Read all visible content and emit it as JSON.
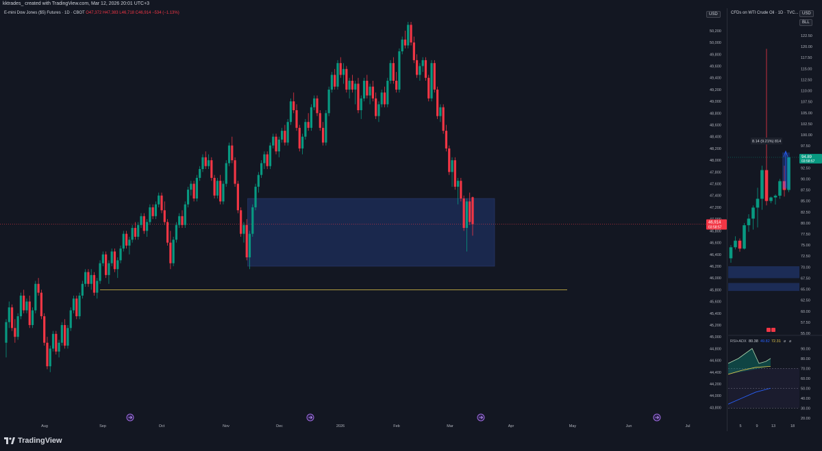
{
  "topbar": {
    "text": "kktrades_ created with TradingView.com, Mar 12, 2026 20:01 UTC+3"
  },
  "main": {
    "symbol": "E-mini Dow Jones ($5) Futures · 1D · CBOT",
    "ohlc": "O47,372 H47,383 L46,718 C46,914 −534 (−1.13%)",
    "currency": "USD",
    "price_label": "46,914",
    "countdown": "03:58:57",
    "y_ticks": [
      "50,200",
      "50,000",
      "49,800",
      "49,600",
      "49,400",
      "49,200",
      "49,000",
      "48,800",
      "48,600",
      "48,400",
      "48,200",
      "48,000",
      "47,800",
      "47,600",
      "47,400",
      "47,200",
      "47,000",
      "46,800",
      "46,600",
      "46,400",
      "46,200",
      "46,000",
      "45,800",
      "45,600",
      "45,400",
      "45,200",
      "45,000",
      "44,800",
      "44,600",
      "44,400",
      "44,200",
      "44,000",
      "43,800"
    ],
    "x_ticks": [
      "Aug",
      "Sep",
      "Oct",
      "Nov",
      "Dec",
      "2026",
      "Feb",
      "Mar",
      "Apr",
      "May",
      "Jun",
      "Jul"
    ]
  },
  "side": {
    "symbol": "CFDs on WTI Crude Oil · 1D · TVC...",
    "currency": "USD",
    "unit": "BLL",
    "y_ticks": [
      "122.50",
      "120.00",
      "117.50",
      "115.00",
      "112.50",
      "110.00",
      "107.50",
      "105.00",
      "102.50",
      "100.00",
      "97.50",
      "95.00",
      "92.50",
      "90.00",
      "87.50",
      "85.00",
      "82.50",
      "80.00",
      "77.50",
      "75.00",
      "72.50",
      "70.00",
      "67.50",
      "65.00",
      "62.50",
      "60.00",
      "57.50",
      "55.00"
    ],
    "price_label": "94.89",
    "countdown": "03:58:57",
    "measure": "8.14 (9.21%) 814",
    "rsi_label": "RSI+ADX",
    "rsi_v1": "80.38",
    "rsi_v2": "49.82",
    "rsi_v3": "72.31",
    "rsi_ticks": [
      "90.00",
      "80.00",
      "70.00",
      "60.00",
      "50.00",
      "40.00",
      "30.00",
      "20.00"
    ],
    "x_ticks": [
      "5",
      "9",
      "13",
      "18"
    ]
  },
  "footer": {
    "brand": "TradingView"
  },
  "colors": {
    "up": "#089981",
    "down": "#f23645",
    "zone": "#1e2f5c",
    "level": "#e6c84b"
  },
  "chart_data": {
    "type": "candlestick",
    "title": "E-mini Dow Jones ($5) Futures · 1D · CBOT",
    "ylim": [
      43700,
      50350
    ],
    "candles": [
      [
        44900,
        45300,
        44650,
        45250
      ],
      [
        45250,
        45600,
        45150,
        45500
      ],
      [
        45500,
        45550,
        45100,
        45150
      ],
      [
        45150,
        45300,
        44900,
        45000
      ],
      [
        45000,
        45400,
        44950,
        45350
      ],
      [
        45350,
        45750,
        45300,
        45700
      ],
      [
        45700,
        45800,
        45400,
        45450
      ],
      [
        45450,
        45650,
        45400,
        45600
      ],
      [
        45600,
        45700,
        45150,
        45200
      ],
      [
        45200,
        45500,
        45150,
        45450
      ],
      [
        45450,
        45950,
        45400,
        45900
      ],
      [
        45900,
        46000,
        45700,
        45750
      ],
      [
        45750,
        45800,
        45300,
        45350
      ],
      [
        45350,
        45400,
        44850,
        44900
      ],
      [
        44900,
        45000,
        44450,
        44500
      ],
      [
        44500,
        44850,
        44400,
        44800
      ],
      [
        44800,
        45100,
        44750,
        45050
      ],
      [
        45050,
        45100,
        44700,
        44750
      ],
      [
        44750,
        44950,
        44650,
        44900
      ],
      [
        44900,
        45250,
        44850,
        45200
      ],
      [
        45200,
        45300,
        44800,
        44850
      ],
      [
        44850,
        45200,
        44800,
        45150
      ],
      [
        45150,
        45500,
        45100,
        45450
      ],
      [
        45450,
        45700,
        45400,
        45650
      ],
      [
        45650,
        45700,
        45300,
        45350
      ],
      [
        45350,
        45750,
        45300,
        45700
      ],
      [
        45700,
        45950,
        45650,
        45900
      ],
      [
        45900,
        46150,
        45850,
        46100
      ],
      [
        46100,
        46150,
        45850,
        45900
      ],
      [
        45900,
        46150,
        45800,
        46050
      ],
      [
        46050,
        46100,
        45700,
        45750
      ],
      [
        45750,
        46000,
        45650,
        45950
      ],
      [
        45950,
        46300,
        45900,
        46250
      ],
      [
        46250,
        46450,
        46200,
        46400
      ],
      [
        46400,
        46450,
        46000,
        46050
      ],
      [
        46050,
        46300,
        45900,
        46250
      ],
      [
        46250,
        46500,
        46200,
        46450
      ],
      [
        46450,
        46500,
        46100,
        46150
      ],
      [
        46150,
        46350,
        46000,
        46300
      ],
      [
        46300,
        46550,
        46250,
        46500
      ],
      [
        46500,
        46800,
        46450,
        46750
      ],
      [
        46750,
        46800,
        46500,
        46550
      ],
      [
        46550,
        46700,
        46400,
        46650
      ],
      [
        46650,
        46900,
        46600,
        46850
      ],
      [
        46850,
        46950,
        46650,
        46700
      ],
      [
        46700,
        46950,
        46650,
        46900
      ],
      [
        46900,
        47100,
        46850,
        47050
      ],
      [
        47050,
        47100,
        46750,
        46800
      ],
      [
        46800,
        47000,
        46700,
        46950
      ],
      [
        46950,
        47250,
        46900,
        47200
      ],
      [
        47200,
        47250,
        47000,
        47050
      ],
      [
        47050,
        47300,
        47000,
        47250
      ],
      [
        47250,
        47450,
        47200,
        47400
      ],
      [
        47400,
        47450,
        47100,
        47150
      ],
      [
        47150,
        47300,
        46900,
        46950
      ],
      [
        46950,
        47000,
        46550,
        46600
      ],
      [
        46600,
        46800,
        46150,
        46250
      ],
      [
        46250,
        46700,
        46200,
        46650
      ],
      [
        46650,
        46950,
        46600,
        46900
      ],
      [
        46900,
        47100,
        46850,
        47050
      ],
      [
        47050,
        47150,
        46850,
        46900
      ],
      [
        46900,
        47300,
        46850,
        47250
      ],
      [
        47250,
        47550,
        47200,
        47500
      ],
      [
        47500,
        47650,
        47400,
        47600
      ],
      [
        47600,
        47650,
        47300,
        47350
      ],
      [
        47350,
        47750,
        47300,
        47700
      ],
      [
        47700,
        47900,
        47650,
        47850
      ],
      [
        47850,
        48100,
        47800,
        48050
      ],
      [
        48050,
        48150,
        47850,
        47900
      ],
      [
        47900,
        48100,
        47850,
        48000
      ],
      [
        48000,
        48050,
        47650,
        47700
      ],
      [
        47700,
        47750,
        47350,
        47400
      ],
      [
        47400,
        47700,
        47350,
        47650
      ],
      [
        47650,
        47750,
        47250,
        47300
      ],
      [
        47300,
        47650,
        47250,
        47600
      ],
      [
        47600,
        48000,
        47550,
        47950
      ],
      [
        47950,
        48300,
        47900,
        48250
      ],
      [
        48250,
        48400,
        47950,
        48000
      ],
      [
        48000,
        48050,
        47550,
        47600
      ],
      [
        47600,
        47650,
        47100,
        47150
      ],
      [
        47150,
        47200,
        46700,
        46750
      ],
      [
        46750,
        46950,
        46600,
        46900
      ],
      [
        46900,
        47000,
        46300,
        46350
      ],
      [
        46350,
        46800,
        46150,
        46750
      ],
      [
        46750,
        47250,
        46700,
        47200
      ],
      [
        47200,
        47600,
        47150,
        47550
      ],
      [
        47550,
        47800,
        47450,
        47750
      ],
      [
        47750,
        48000,
        47700,
        47950
      ],
      [
        47950,
        48150,
        47850,
        48100
      ],
      [
        48100,
        48150,
        47850,
        47900
      ],
      [
        47900,
        48300,
        47850,
        48250
      ],
      [
        48250,
        48450,
        48200,
        48400
      ],
      [
        48400,
        48450,
        48100,
        48150
      ],
      [
        48150,
        48400,
        48050,
        48350
      ],
      [
        48350,
        48550,
        48300,
        48500
      ],
      [
        48500,
        48600,
        48250,
        48300
      ],
      [
        48300,
        48700,
        48250,
        48650
      ],
      [
        48650,
        49050,
        48600,
        49000
      ],
      [
        49000,
        49150,
        48800,
        48850
      ],
      [
        48850,
        48950,
        48500,
        48550
      ],
      [
        48550,
        48600,
        48150,
        48200
      ],
      [
        48200,
        48450,
        48100,
        48400
      ],
      [
        48400,
        48700,
        48350,
        48650
      ],
      [
        48650,
        48800,
        48500,
        48550
      ],
      [
        48550,
        48950,
        48500,
        48900
      ],
      [
        48900,
        49100,
        48850,
        49050
      ],
      [
        49050,
        49100,
        48750,
        48800
      ],
      [
        48800,
        48850,
        48500,
        48550
      ],
      [
        48550,
        48650,
        48250,
        48300
      ],
      [
        48300,
        48850,
        48250,
        48800
      ],
      [
        48800,
        49250,
        48750,
        49200
      ],
      [
        49200,
        49500,
        49150,
        49450
      ],
      [
        49450,
        49550,
        49200,
        49250
      ],
      [
        49250,
        49700,
        49200,
        49650
      ],
      [
        49650,
        49750,
        49400,
        49450
      ],
      [
        49450,
        49650,
        49300,
        49550
      ],
      [
        49550,
        49600,
        49150,
        49200
      ],
      [
        49200,
        49400,
        49050,
        49350
      ],
      [
        49350,
        49450,
        49150,
        49200
      ],
      [
        49200,
        49350,
        48950,
        49300
      ],
      [
        49300,
        49400,
        48800,
        48850
      ],
      [
        48850,
        49100,
        48700,
        49050
      ],
      [
        49050,
        49400,
        49000,
        49350
      ],
      [
        49350,
        49450,
        49050,
        49100
      ],
      [
        49100,
        49300,
        48950,
        49250
      ],
      [
        49250,
        49350,
        49000,
        49050
      ],
      [
        49050,
        49150,
        48700,
        48750
      ],
      [
        48750,
        49000,
        48650,
        48950
      ],
      [
        48950,
        49200,
        48900,
        49150
      ],
      [
        49150,
        49250,
        48900,
        48950
      ],
      [
        48950,
        49400,
        48900,
        49350
      ],
      [
        49350,
        49700,
        49300,
        49650
      ],
      [
        49650,
        49750,
        49300,
        49350
      ],
      [
        49350,
        49500,
        49150,
        49200
      ],
      [
        49200,
        49900,
        49150,
        49850
      ],
      [
        49850,
        50100,
        49800,
        50050
      ],
      [
        50050,
        50200,
        49900,
        49950
      ],
      [
        49950,
        50350,
        49900,
        50300
      ],
      [
        50300,
        50350,
        49950,
        50000
      ],
      [
        50000,
        50100,
        49650,
        49700
      ],
      [
        49700,
        49800,
        49400,
        49450
      ],
      [
        49450,
        49650,
        49350,
        49600
      ],
      [
        49600,
        49750,
        49500,
        49700
      ],
      [
        49700,
        49750,
        49350,
        49400
      ],
      [
        49400,
        49450,
        49000,
        49050
      ],
      [
        49050,
        49700,
        49000,
        49650
      ],
      [
        49650,
        49700,
        49150,
        49200
      ],
      [
        49200,
        49250,
        48700,
        48750
      ],
      [
        48750,
        48950,
        48650,
        48900
      ],
      [
        48900,
        48950,
        48450,
        48500
      ],
      [
        48500,
        48600,
        48150,
        48200
      ],
      [
        48200,
        48250,
        47750,
        47800
      ],
      [
        47800,
        48050,
        47550,
        48000
      ],
      [
        48000,
        48050,
        47500,
        47550
      ],
      [
        47550,
        47700,
        47250,
        47650
      ],
      [
        47650,
        47700,
        47300,
        47350
      ],
      [
        47350,
        47400,
        46800,
        46850
      ],
      [
        46850,
        47350,
        46450,
        47300
      ],
      [
        47300,
        47450,
        46900,
        46950
      ],
      [
        47372,
        47383,
        46718,
        46914
      ]
    ],
    "zone": {
      "x_from": "Nov",
      "x_to": "Apr",
      "y_high": 47350,
      "y_low": 46200
    },
    "level": {
      "y": 45800
    },
    "last_price": 46914
  }
}
